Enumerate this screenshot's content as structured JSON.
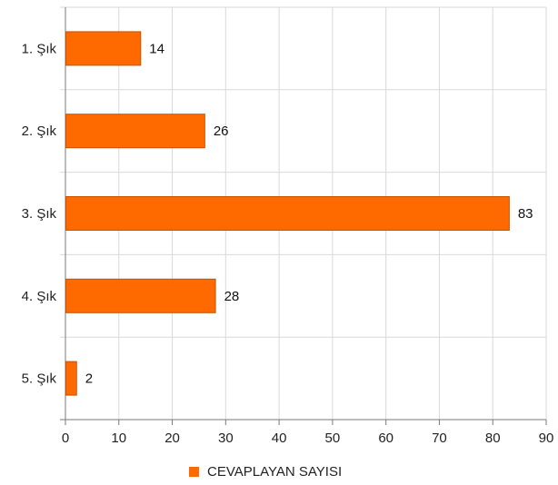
{
  "chart_data": {
    "type": "bar",
    "orientation": "horizontal",
    "categories": [
      "1. Şık",
      "2. Şık",
      "3. Şık",
      "4. Şık",
      "5. Şık"
    ],
    "series": [
      {
        "name": "CEVAPLAYAN SAYISI",
        "values": [
          14,
          26,
          83,
          28,
          2
        ]
      }
    ],
    "xlim": [
      0,
      90
    ],
    "x_ticks": [
      0,
      10,
      20,
      30,
      40,
      50,
      60,
      70,
      80,
      90
    ],
    "grid": true,
    "legend_position": "bottom",
    "bar_color": "#ff6a00",
    "bar_stroke": "#c85200"
  }
}
